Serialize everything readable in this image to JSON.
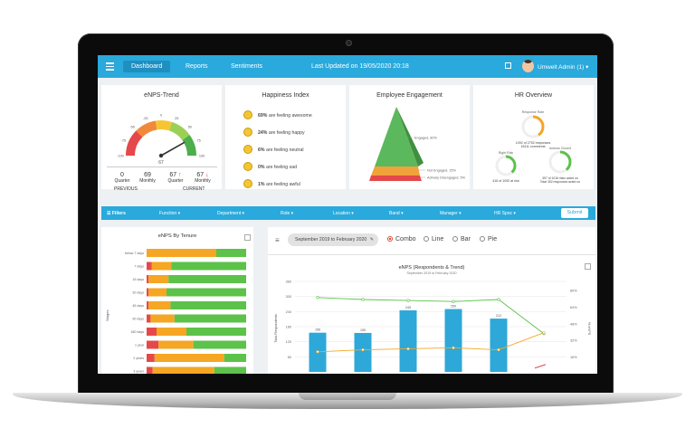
{
  "nav": {
    "tabs": [
      "Dashboard",
      "Reports",
      "Sentiments"
    ],
    "last_updated": "Last Updated on 19/05/2020 20:18",
    "user": "Umwelt Admin (1)"
  },
  "cards": {
    "enps": {
      "title": "eNPS-Trend",
      "gauge_value": "67",
      "gauge_ticks": [
        "-100",
        "-75",
        "-50",
        "-25",
        "0",
        "25",
        "50",
        "75",
        "100"
      ],
      "stats": [
        {
          "value": "0",
          "label": "Quarter"
        },
        {
          "value": "69",
          "label": "Monthly"
        },
        {
          "value": "67",
          "label": "Quarter",
          "arrow": "↑"
        },
        {
          "value": "67",
          "label": "Monthly",
          "arrow": "↓"
        }
      ],
      "previous": "PREVIOUS",
      "current": "CURRENT"
    },
    "happiness": {
      "title": "Happiness Index",
      "rows": [
        {
          "pct": "69%",
          "text": "are feeling awesome"
        },
        {
          "pct": "24%",
          "text": "are feeling happy"
        },
        {
          "pct": "6%",
          "text": "are feeling neutral"
        },
        {
          "pct": "0%",
          "text": "are feeling sad"
        },
        {
          "pct": "1%",
          "text": "are feeling awful"
        }
      ]
    },
    "engagement": {
      "title": "Employee Engagement",
      "labels": [
        "Engaged, 80%",
        "Not Engaged, 15%",
        "Actively Disengaged, 5%"
      ],
      "colors": [
        "#5cb85c",
        "#f0a33a",
        "#e5484a"
      ]
    },
    "hr": {
      "title": "HR Overview",
      "response_label": "Response Rate",
      "response_value": "",
      "response_text": "1092 of 2752 responses",
      "response_sub": "16111 comments",
      "right_label": "Right Risk",
      "right_text": "416 of 1092 at risk",
      "actions_label": "Actions Closed",
      "actions_text": "397 of 1016 risks acted on",
      "actions_sub": "Total 302 responses acted on"
    }
  },
  "filters": {
    "title": "Filters",
    "items": [
      "Function",
      "Department",
      "Role",
      "Location",
      "Band",
      "Manager",
      "HR Spoc"
    ],
    "submit": "Submit"
  },
  "tenure": {
    "title": "eNPS By Tenure",
    "ylabel": "Stages",
    "categories": [
      "below 7 days",
      "7 days",
      "15 days",
      "30 days",
      "45 days",
      "90 days",
      "180 days",
      "1 year",
      "2 years",
      "3 years",
      "4 years"
    ],
    "bars": [
      [
        0,
        0.7,
        0.3
      ],
      [
        0.05,
        0.2,
        0.75
      ],
      [
        0.02,
        0.2,
        0.78
      ],
      [
        0.02,
        0.18,
        0.8
      ],
      [
        0.02,
        0.22,
        0.76
      ],
      [
        0.04,
        0.24,
        0.72
      ],
      [
        0.1,
        0.3,
        0.6
      ],
      [
        0.12,
        0.35,
        0.53
      ],
      [
        0.08,
        0.7,
        0.22
      ],
      [
        0.06,
        0.62,
        0.32
      ],
      [
        0.04,
        0.6,
        0.36
      ]
    ]
  },
  "toolbar": {
    "date_range": "September 2019 to February 2020",
    "chart_types": [
      "Combo",
      "Line",
      "Bar",
      "Pie"
    ],
    "selected": "Combo"
  },
  "chart_data": {
    "type": "bar",
    "title": "eNPS (Respondents & Trend)",
    "subtitle": "September 2019 to February 2020",
    "ylabel": "Total Respondents",
    "y2label": "% eNPS",
    "ylim": [
      0,
      360
    ],
    "yticks": [
      "360",
      "300",
      "240",
      "180",
      "120",
      "60"
    ],
    "y2ticks": [
      "80%",
      "64%",
      "48%",
      "32%",
      "16%"
    ],
    "bar_values": [
      156,
      155,
      245,
      250,
      212,
      0
    ],
    "bar_labels": [
      "156",
      "155",
      "245",
      "250",
      "212",
      ""
    ],
    "line_green": [
      74,
      72,
      71,
      70,
      72,
      38
    ],
    "line_orange": [
      20,
      22,
      23,
      24,
      22,
      39
    ],
    "line_red": [
      null,
      null,
      null,
      null,
      null,
      2
    ],
    "colors": {
      "bars": "#2ea8d8",
      "green": "#5cc24a",
      "orange": "#f5a623",
      "red": "#e03131"
    }
  }
}
